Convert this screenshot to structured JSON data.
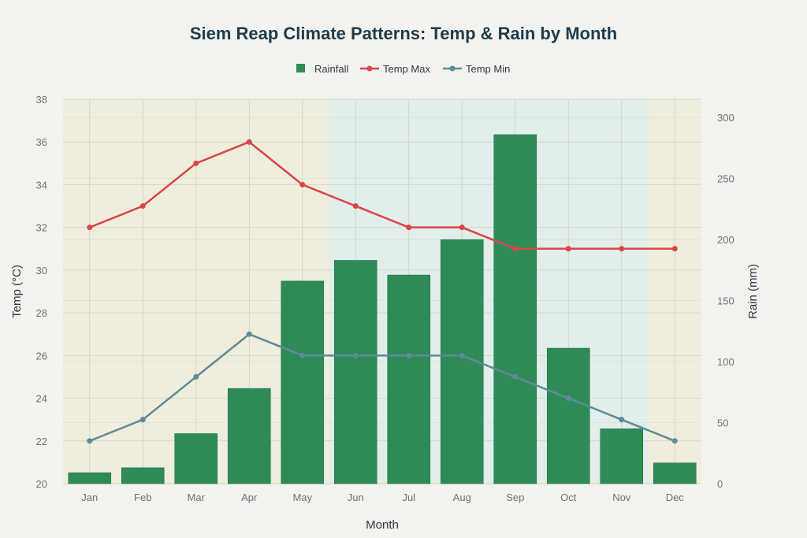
{
  "chart_data": {
    "type": "bar+line",
    "title": "Siem Reap Climate Patterns: Temp & Rain by Month",
    "xlabel": "Month",
    "ylabel_left": "Temp (°C)",
    "ylabel_right": "Rain (mm)",
    "categories": [
      "Jan",
      "Feb",
      "Mar",
      "Apr",
      "May",
      "Jun",
      "Jul",
      "Aug",
      "Sep",
      "Oct",
      "Nov",
      "Dec"
    ],
    "ylim_left": [
      20,
      38
    ],
    "ylim_right": [
      0,
      315
    ],
    "left_ticks": [
      20,
      22,
      24,
      26,
      28,
      30,
      32,
      34,
      36,
      38
    ],
    "right_ticks": [
      0,
      50,
      100,
      150,
      200,
      250,
      300
    ],
    "grid": true,
    "legend_position": "top-center",
    "series": [
      {
        "name": "Rainfall",
        "type": "bar",
        "axis": "right",
        "color": "#2e8b57",
        "values": [
          9,
          13,
          41,
          78,
          166,
          183,
          171,
          200,
          286,
          111,
          45,
          17
        ]
      },
      {
        "name": "Temp Max",
        "type": "line",
        "axis": "left",
        "color": "#d9454a",
        "values": [
          32,
          33,
          35,
          36,
          34,
          33,
          32,
          32,
          31,
          31,
          31,
          31
        ]
      },
      {
        "name": "Temp Min",
        "type": "line",
        "axis": "left",
        "color": "#5f8a96",
        "values": [
          22,
          23,
          25,
          27,
          26,
          26,
          26,
          26,
          25,
          24,
          23,
          22
        ]
      }
    ],
    "season_bands": [
      {
        "from": "Jan",
        "to": "May",
        "color": "#efeedd"
      },
      {
        "from": "Jun",
        "to": "Nov",
        "color": "#e1eee9"
      },
      {
        "from": "Dec",
        "to": "Dec",
        "color": "#efeedd"
      }
    ]
  }
}
